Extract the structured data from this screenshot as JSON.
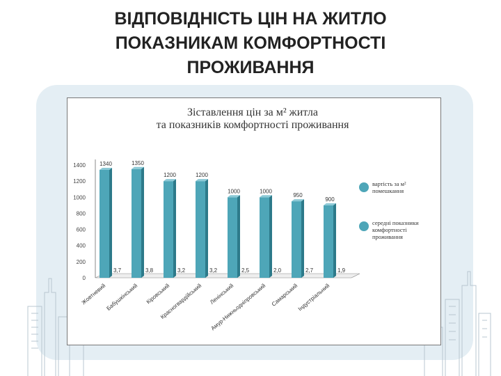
{
  "slide": {
    "title_lines": [
      "ВІДПОВІДНІСТЬ ЦІН НА ЖИТЛО",
      "ПОКАЗНИКАМ КОМФОРТНОСТІ",
      "ПРОЖИВАННЯ"
    ]
  },
  "colors": {
    "bar_front": "#4ea6b8",
    "bar_side": "#2d7a8a",
    "bar_top": "#8cc9d6",
    "axis": "#888888",
    "backdrop": "#e4eef4"
  },
  "chart_data": {
    "type": "bar",
    "title_lines": [
      "Зіставлення цін за м² житла",
      "та показників комфортності проживання"
    ],
    "categories": [
      "Жовтневий",
      "Бабушкінський",
      "Кіровський",
      "Красногвардійський",
      "Ленінський",
      "Амур-Нижньодніпровський",
      "Самарський",
      "Індустріальний"
    ],
    "series": [
      {
        "name": "вартість за м² помешкання",
        "values": [
          1340,
          1350,
          1200,
          1200,
          1000,
          1000,
          950,
          900
        ]
      },
      {
        "name": "середні показники комфортності проживання",
        "values": [
          3.7,
          3.8,
          3.2,
          3.2,
          2.5,
          2.0,
          2.7,
          1.9
        ]
      }
    ],
    "value_labels": [
      "1340",
      "1350",
      "1200",
      "1200",
      "1000",
      "1000",
      "950",
      "900"
    ],
    "comfort_labels": [
      "3,7",
      "3,8",
      "3,2",
      "3,2",
      "2,5",
      "2,0",
      "2,7",
      "1,9"
    ],
    "y_ticks": [
      0,
      200,
      400,
      600,
      800,
      1000,
      1200,
      1400
    ],
    "ylim": [
      0,
      1400
    ],
    "legend_position": "right",
    "grid": false
  }
}
